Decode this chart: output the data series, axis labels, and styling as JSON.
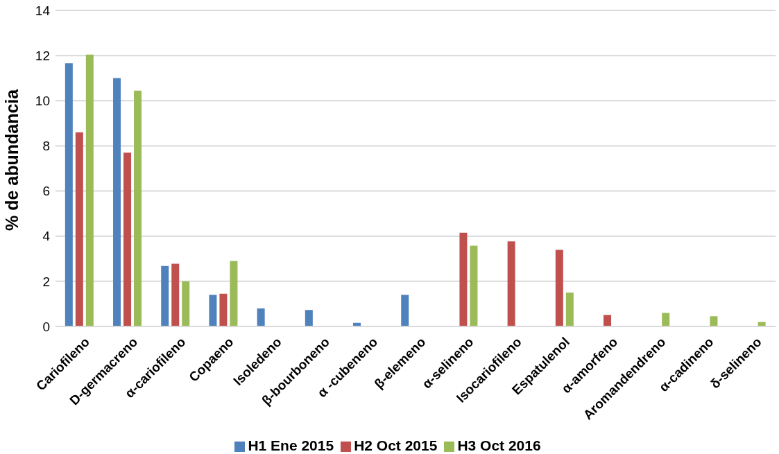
{
  "chart_data": {
    "type": "bar",
    "ylabel": "% de abundancia",
    "categories": [
      "Cariofileno",
      "D-germacreno",
      "α-cariofileno",
      "Copaeno",
      "Isoledeno",
      "β-bourboneno",
      "α -cubeneno",
      "β-elemeno",
      "α-selineno",
      "Isocariofileno",
      "Espatulenol",
      "α-amorfeno",
      "Aromandendreno",
      "α-cadineno",
      "δ-selineno"
    ],
    "series": [
      {
        "name": "H1 Ene 2015",
        "color": "#4f81bd",
        "values": [
          11.66,
          11.0,
          2.68,
          1.4,
          0.8,
          0.73,
          0.16,
          1.4,
          null,
          null,
          null,
          null,
          null,
          null,
          null
        ]
      },
      {
        "name": "H2 Oct 2015",
        "color": "#c0504d",
        "values": [
          8.6,
          7.7,
          2.78,
          1.45,
          null,
          null,
          null,
          null,
          4.15,
          3.77,
          3.39,
          0.51,
          null,
          null,
          null
        ]
      },
      {
        "name": "H3 Oct 2016",
        "color": "#9bbb59",
        "values": [
          12.04,
          10.45,
          2.0,
          2.9,
          null,
          null,
          null,
          null,
          3.58,
          null,
          1.5,
          null,
          0.6,
          0.45,
          0.2
        ]
      }
    ],
    "ylim": [
      0,
      14
    ],
    "yticks": [
      0,
      2,
      4,
      6,
      8,
      10,
      12,
      14
    ],
    "grid": "y",
    "legend": "bottom"
  }
}
